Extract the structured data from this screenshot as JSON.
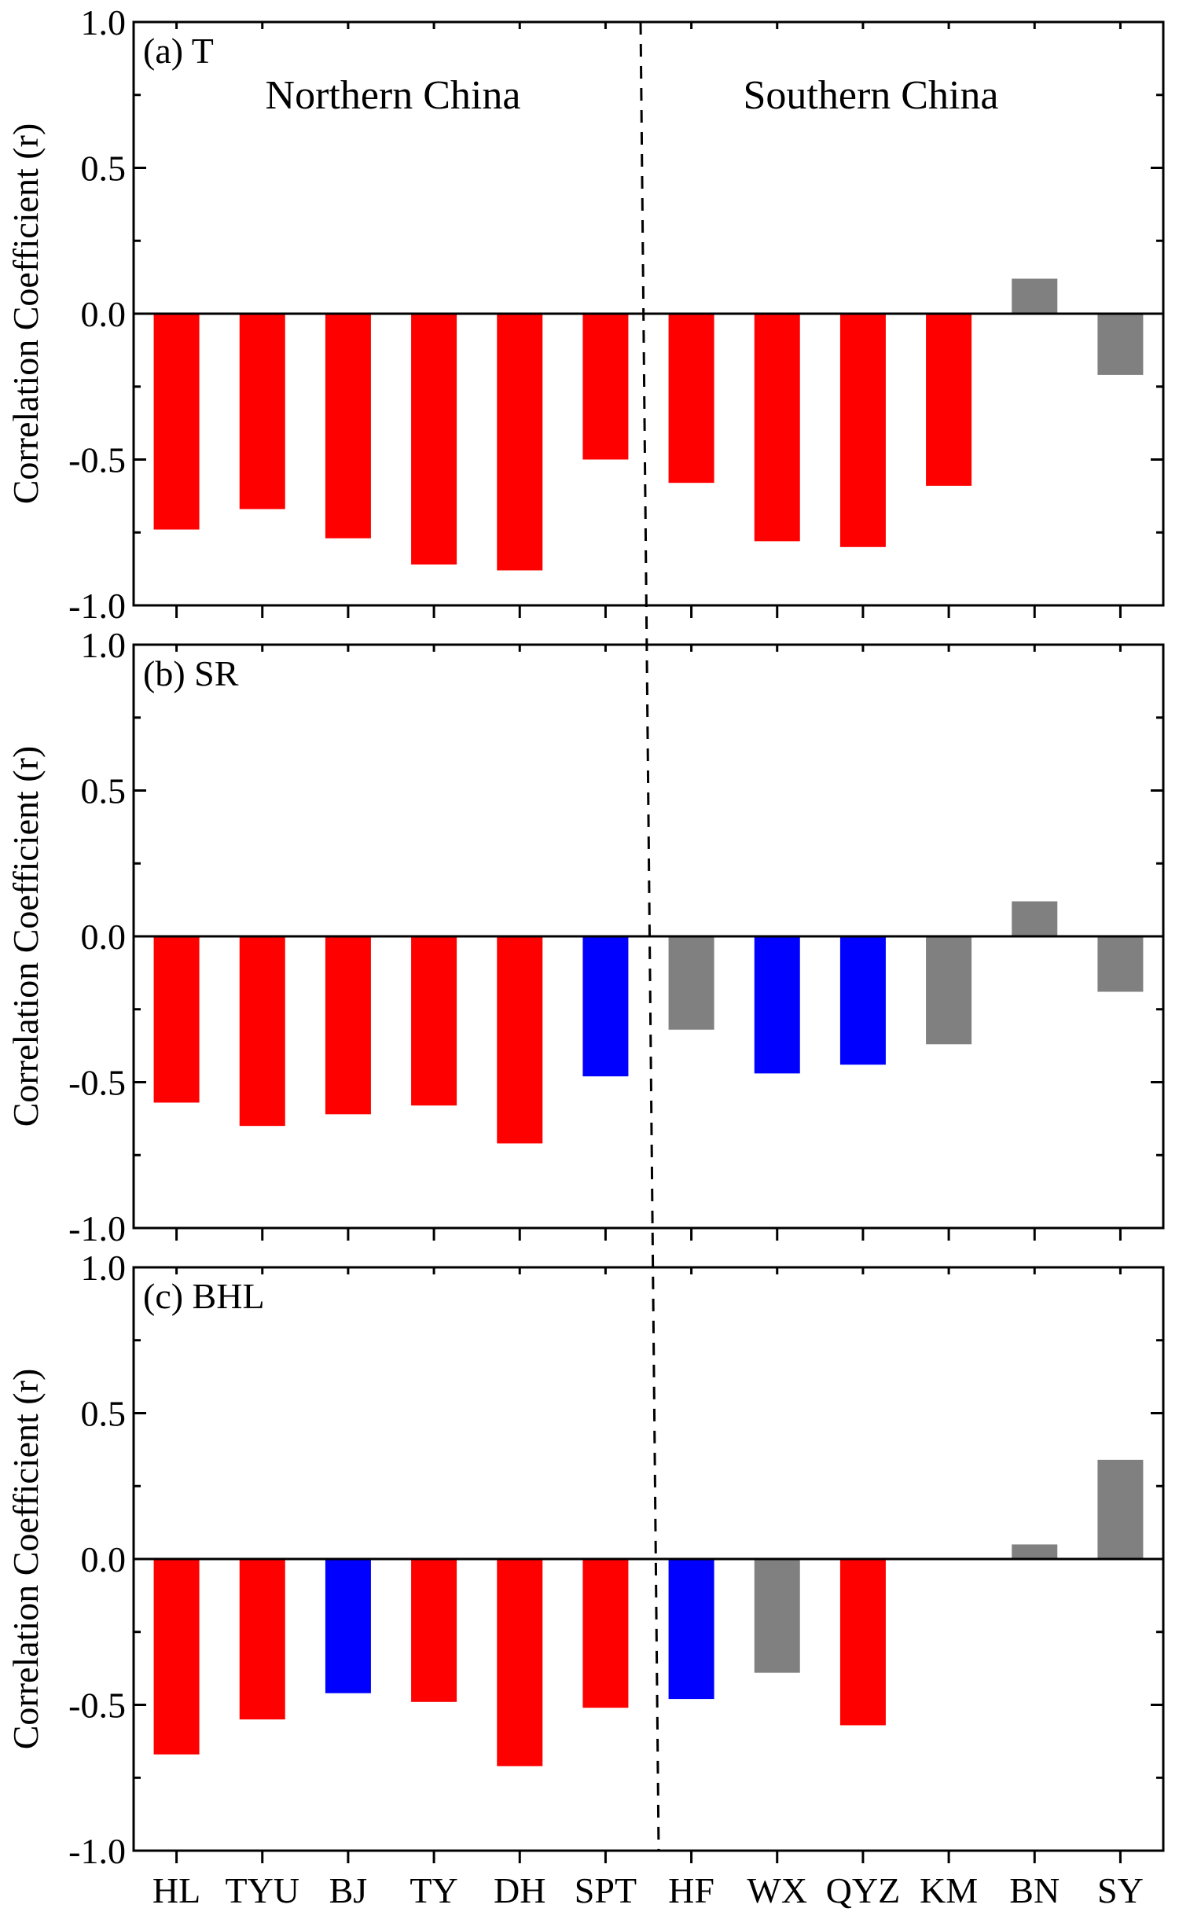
{
  "figure": {
    "colors": {
      "red": "#ff0000",
      "blue": "#0000ff",
      "gray": "#808080",
      "axis": "#000000"
    },
    "y_ticks": [
      "1.0",
      "0.5",
      "0.0",
      "-0.5",
      "-1.0"
    ],
    "categories": [
      "HL",
      "TYU",
      "BJ",
      "TY",
      "DH",
      "SPT",
      "HF",
      "WX",
      "QYZ",
      "KM",
      "BN",
      "SY"
    ],
    "region_labels": [
      "Northern China",
      "Southern China"
    ]
  },
  "chart_data": [
    {
      "type": "bar",
      "panel_label": "(a) T",
      "ylabel": "Correlation Coefficient (r)",
      "ylim": [
        -1.0,
        1.0
      ],
      "categories": [
        "HL",
        "TYU",
        "BJ",
        "TY",
        "DH",
        "SPT",
        "HF",
        "WX",
        "QYZ",
        "KM",
        "BN",
        "SY"
      ],
      "values": [
        -0.74,
        -0.67,
        -0.77,
        -0.86,
        -0.88,
        -0.5,
        -0.58,
        -0.78,
        -0.8,
        -0.59,
        0.12,
        -0.21
      ],
      "colors": [
        "red",
        "red",
        "red",
        "red",
        "red",
        "red",
        "red",
        "red",
        "red",
        "red",
        "gray",
        "gray"
      ],
      "annotations": [
        "Northern China",
        "Southern China"
      ],
      "grid": false
    },
    {
      "type": "bar",
      "panel_label": "(b) SR",
      "ylabel": "Correlation Coefficient (r)",
      "ylim": [
        -1.0,
        1.0
      ],
      "categories": [
        "HL",
        "TYU",
        "BJ",
        "TY",
        "DH",
        "SPT",
        "HF",
        "WX",
        "QYZ",
        "KM",
        "BN",
        "SY"
      ],
      "values": [
        -0.57,
        -0.65,
        -0.61,
        -0.58,
        -0.71,
        -0.48,
        -0.32,
        -0.47,
        -0.44,
        -0.37,
        0.12,
        -0.19
      ],
      "colors": [
        "red",
        "red",
        "red",
        "red",
        "red",
        "blue",
        "gray",
        "blue",
        "blue",
        "gray",
        "gray",
        "gray"
      ],
      "grid": false
    },
    {
      "type": "bar",
      "panel_label": "(c) BHL",
      "ylabel": "Correlation Coefficient (r)",
      "ylim": [
        -1.0,
        1.0
      ],
      "categories": [
        "HL",
        "TYU",
        "BJ",
        "TY",
        "DH",
        "SPT",
        "HF",
        "WX",
        "QYZ",
        "KM",
        "BN",
        "SY"
      ],
      "values": [
        -0.67,
        -0.55,
        -0.46,
        -0.49,
        -0.71,
        -0.51,
        -0.48,
        -0.39,
        -0.57,
        0.0,
        0.05,
        0.34
      ],
      "colors": [
        "red",
        "red",
        "blue",
        "red",
        "red",
        "red",
        "blue",
        "gray",
        "red",
        "gray",
        "gray",
        "gray"
      ],
      "grid": false
    }
  ]
}
